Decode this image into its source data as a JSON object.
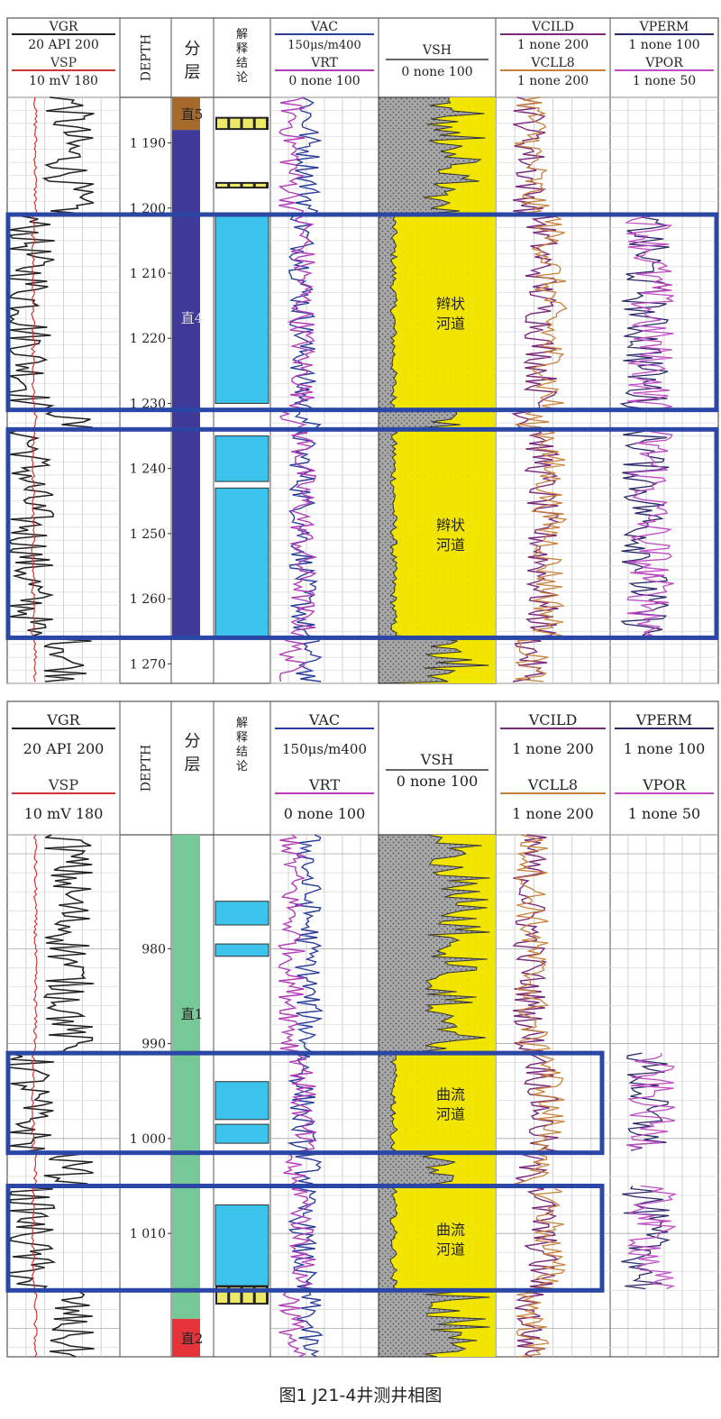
{
  "caption": "图1   J21-4井测井相图",
  "colors": {
    "vgr": "#222222",
    "vsp": "#d33333",
    "vac": "#2a3d9a",
    "vrt": "#b23cb8",
    "vcild": "#7a2a7a",
    "vcll8": "#c7813a",
    "vperm": "#2a2a6a",
    "vpor": "#c04bc4",
    "sand_yellow": "#f2e600",
    "shale_gray": "#a8a8a8",
    "box_blue": "#2b47a5",
    "conc_blue": "#3bc3ec",
    "conc_yellow": "#eee868",
    "layer_zhi5": "#a66b2a",
    "layer_zhi4": "#3f3a99",
    "layer_zhi1": "#76c896",
    "layer_zhi2": "#e6333a"
  },
  "tracks_header": {
    "col1": {
      "top": "VGR",
      "top_scale": "20 API 200",
      "bottom": "VSP",
      "bottom_scale": "10  mV 180"
    },
    "col2": {
      "title": "DEPTH"
    },
    "col3": {
      "title": "分层"
    },
    "col4": {
      "title": "解释结论"
    },
    "col5": {
      "top": "VAC",
      "top_scale": "150μs/m400",
      "bottom": "VRT",
      "bottom_scale": "0 none 100"
    },
    "col6": {
      "title": "VSH",
      "scale": "0 none 100"
    },
    "col7": {
      "top": "VCILD",
      "top_scale": "1 none 200",
      "bottom": "VCLL8",
      "bottom_scale": "1 none 200"
    },
    "col8": {
      "top": "VPERM",
      "top_scale": "1 none 100",
      "bottom": "VPOR",
      "bottom_scale": "1 none 50"
    }
  },
  "chart_data": [
    {
      "type": "well_log",
      "depth_range": [
        1183,
        1273
      ],
      "depth_ticks": [
        "1 190",
        "1 200",
        "1 210",
        "1 220",
        "1 230",
        "1 240",
        "1 250",
        "1 260",
        "1 270"
      ],
      "depth_tick_values": [
        1190,
        1200,
        1210,
        1220,
        1230,
        1240,
        1250,
        1260,
        1270
      ],
      "layers": [
        {
          "name": "直5",
          "from": 1183,
          "to": 1188
        },
        {
          "name": "直4",
          "from": 1188,
          "to": 1266
        }
      ],
      "conclusions": [
        {
          "kind": "yellow",
          "from": 1186,
          "to": 1188
        },
        {
          "kind": "yellow",
          "from": 1196,
          "to": 1197
        },
        {
          "kind": "blue",
          "from": 1201,
          "to": 1230
        },
        {
          "kind": "blue",
          "from": 1235,
          "to": 1242
        },
        {
          "kind": "blue",
          "from": 1243,
          "to": 1266
        }
      ],
      "facies": [
        {
          "label_line1": "辫状",
          "label_line2": "河道",
          "from": 1201,
          "to": 1231
        },
        {
          "label_line1": "辫状",
          "label_line2": "河道",
          "from": 1234,
          "to": 1266
        }
      ]
    },
    {
      "type": "well_log",
      "depth_range": [
        968,
        1023
      ],
      "depth_ticks": [
        "980",
        "990",
        "1 000",
        "1 010"
      ],
      "depth_tick_values": [
        980,
        990,
        1000,
        1010
      ],
      "layers": [
        {
          "name": "直1",
          "from": 968,
          "to": 1019
        },
        {
          "name": "直2",
          "from": 1019,
          "to": 1023
        }
      ],
      "conclusions": [
        {
          "kind": "blue",
          "from": 975,
          "to": 977.5
        },
        {
          "kind": "blue",
          "from": 979.5,
          "to": 980.8
        },
        {
          "kind": "blue",
          "from": 994,
          "to": 998
        },
        {
          "kind": "blue",
          "from": 998.5,
          "to": 1000.5
        },
        {
          "kind": "blue",
          "from": 1007,
          "to": 1015.5
        },
        {
          "kind": "yellow",
          "from": 1015.5,
          "to": 1017.5
        }
      ],
      "facies": [
        {
          "label_line1": "曲流",
          "label_line2": "河道",
          "from": 991,
          "to": 1001.5
        },
        {
          "label_line1": "曲流",
          "label_line2": "河道",
          "from": 1005,
          "to": 1016
        }
      ]
    }
  ]
}
